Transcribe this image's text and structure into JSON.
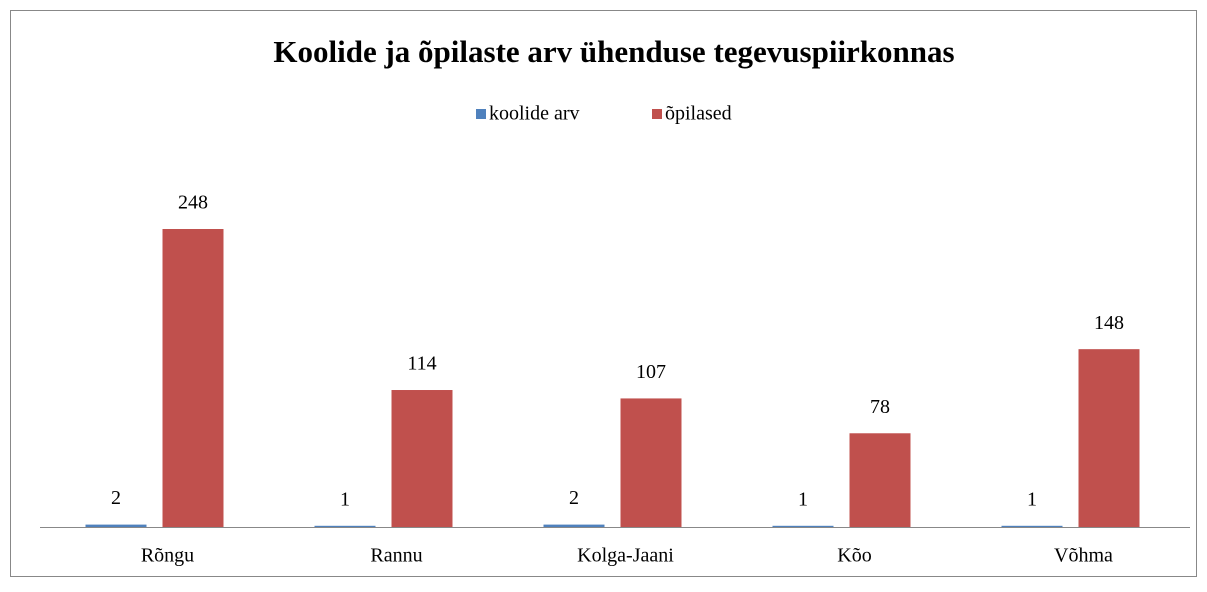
{
  "chart_data": {
    "type": "bar",
    "title": "Koolide ja õpilaste arv ühenduse tegevuspiirkonnas",
    "categories": [
      "Rõngu",
      "Rannu",
      "Kolga-Jaani",
      "Kõo",
      "Võhma"
    ],
    "series": [
      {
        "name": "koolide arv",
        "color": "#4f81bd",
        "values": [
          2,
          1,
          2,
          1,
          1
        ]
      },
      {
        "name": "õpilased",
        "color": "#c0504d",
        "values": [
          248,
          114,
          107,
          78,
          148
        ]
      }
    ],
    "ylim": [
      0,
      280
    ]
  }
}
